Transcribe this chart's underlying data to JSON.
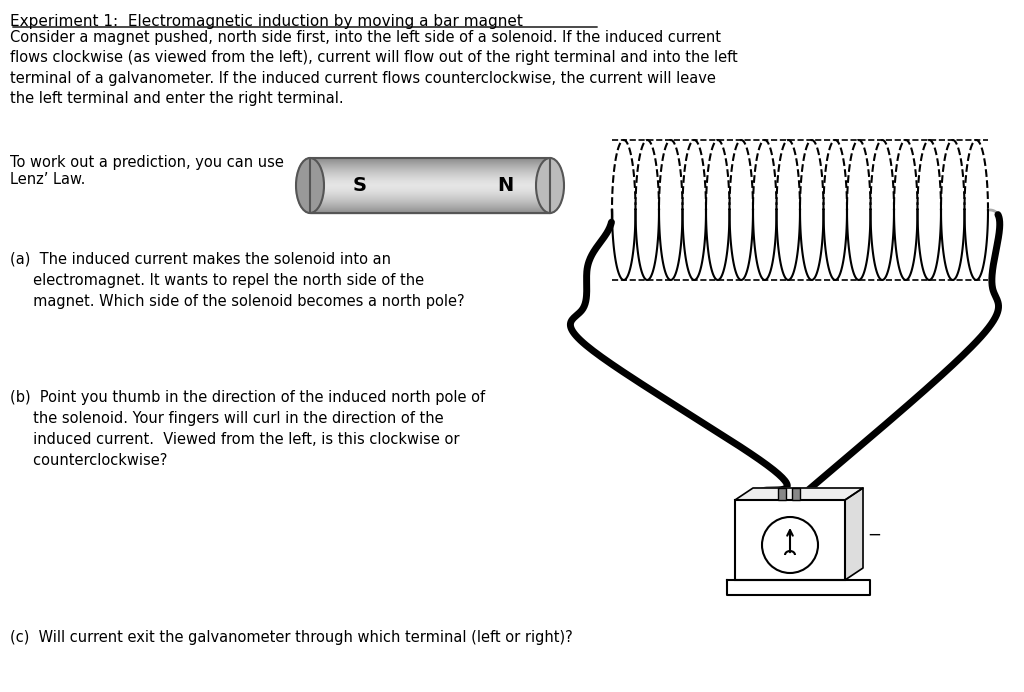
{
  "title_line": "Experiment 1:  Electromagnetic induction by moving a bar magnet",
  "para1": "Consider a magnet pushed, north side first, into the left side of a solenoid. If the induced current\nflows clockwise (as viewed from the left), current will flow out of the right terminal and into the left\nterminal of a galvanometer. If the induced current flows counterclockwise, the current will leave\nthe left terminal and enter the right terminal.",
  "para2_line1": "To work out a prediction, you can use",
  "para2_line2": "Lenz’ Law.",
  "qa": "(a)  The induced current makes the solenoid into an\n     electromagnet. It wants to repel the north side of the\n     magnet. Which side of the solenoid becomes a north pole?",
  "qb": "(b)  Point you thumb in the direction of the induced north pole of\n     the solenoid. Your fingers will curl in the direction of the\n     induced current.  Viewed from the left, is this clockwise or\n     counterclockwise?",
  "qc": "(c)  Will current exit the galvanometer through which terminal (left or right)?",
  "bg_color": "#ffffff",
  "text_color": "#000000",
  "magnet_s_color": "#888888",
  "magnet_n_color": "#aaaaaa",
  "solenoid_color": "#000000",
  "wire_color": "#000000"
}
